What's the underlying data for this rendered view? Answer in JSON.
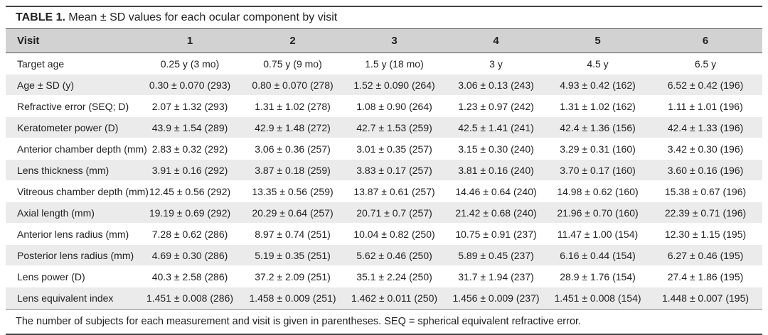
{
  "caption": {
    "label": "TABLE 1.",
    "text": "Mean ± SD values for each ocular component by visit"
  },
  "table": {
    "headers": [
      "Visit",
      "1",
      "2",
      "3",
      "4",
      "5",
      "6"
    ],
    "rows": [
      [
        "Target age",
        "0.25 y (3 mo)",
        "0.75 y (9 mo)",
        "1.5 y (18 mo)",
        "3 y",
        "4.5 y",
        "6.5 y"
      ],
      [
        "Age ± SD (y)",
        "0.30 ± 0.070 (293)",
        "0.80 ± 0.070 (278)",
        "1.52 ± 0.090 (264)",
        "3.06 ± 0.13 (243)",
        "4.93 ± 0.42 (162)",
        "6.52 ± 0.42 (196)"
      ],
      [
        "Refractive error (SEQ; D)",
        "2.07 ± 1.32 (293)",
        "1.31 ± 1.02 (278)",
        "1.08 ± 0.90 (264)",
        "1.23 ± 0.97 (242)",
        "1.31 ± 1.02 (162)",
        "1.11 ± 1.01 (196)"
      ],
      [
        "Keratometer power (D)",
        "43.9 ± 1.54 (289)",
        "42.9 ± 1.48 (272)",
        "42.7 ± 1.53 (259)",
        "42.5 ± 1.41 (241)",
        "42.4 ± 1.36 (156)",
        "42.4 ± 1.33 (196)"
      ],
      [
        "Anterior chamber depth (mm)",
        "2.83 ± 0.32 (292)",
        "3.06 ± 0.36 (257)",
        "3.01 ± 0.35 (257)",
        "3.15 ± 0.30 (240)",
        "3.29 ± 0.31 (160)",
        "3.42 ± 0.30 (196)"
      ],
      [
        "Lens thickness (mm)",
        "3.91 ± 0.16 (292)",
        "3.87 ± 0.18 (259)",
        "3.83 ± 0.17 (257)",
        "3.81 ± 0.16 (240)",
        "3.70 ± 0.17 (160)",
        "3.60 ± 0.16 (196)"
      ],
      [
        "Vitreous chamber depth (mm)",
        "12.45 ± 0.56 (292)",
        "13.35 ± 0.56 (259)",
        "13.87 ± 0.61 (257)",
        "14.46 ± 0.64 (240)",
        "14.98 ± 0.62 (160)",
        "15.38 ± 0.67 (196)"
      ],
      [
        "Axial length (mm)",
        "19.19 ± 0.69 (292)",
        "20.29 ± 0.64 (257)",
        "20.71 ± 0.7 (257)",
        "21.42 ± 0.68 (240)",
        "21.96 ± 0.70 (160)",
        "22.39 ± 0.71 (196)"
      ],
      [
        "Anterior lens radius (mm)",
        "7.28 ± 0.62 (286)",
        "8.97 ± 0.74 (251)",
        "10.04 ± 0.82 (250)",
        "10.75 ± 0.91 (237)",
        "11.47 ± 1.00 (154)",
        "12.30 ± 1.15 (195)"
      ],
      [
        "Posterior lens radius (mm)",
        "4.69 ± 0.30 (286)",
        "5.19 ± 0.35 (251)",
        "5.62 ± 0.46 (250)",
        "5.89 ± 0.45 (237)",
        "6.16 ± 0.44 (154)",
        "6.27 ± 0.46 (195)"
      ],
      [
        "Lens power (D)",
        "40.3 ± 2.58 (286)",
        "37.2 ± 2.09 (251)",
        "35.1 ± 2.24 (250)",
        "31.7 ± 1.94 (237)",
        "28.9 ± 1.76 (154)",
        "27.4 ± 1.86 (195)"
      ],
      [
        "Lens equivalent index",
        "1.451 ± 0.008 (286)",
        "1.458 ± 0.009 (251)",
        "1.462 ± 0.011 (250)",
        "1.456 ± 0.009 (237)",
        "1.451 ± 0.008 (154)",
        "1.448 ± 0.007 (195)"
      ]
    ]
  },
  "footnote": "The number of subjects for each measurement and visit is given in parentheses. SEQ = spherical equivalent refractive error."
}
